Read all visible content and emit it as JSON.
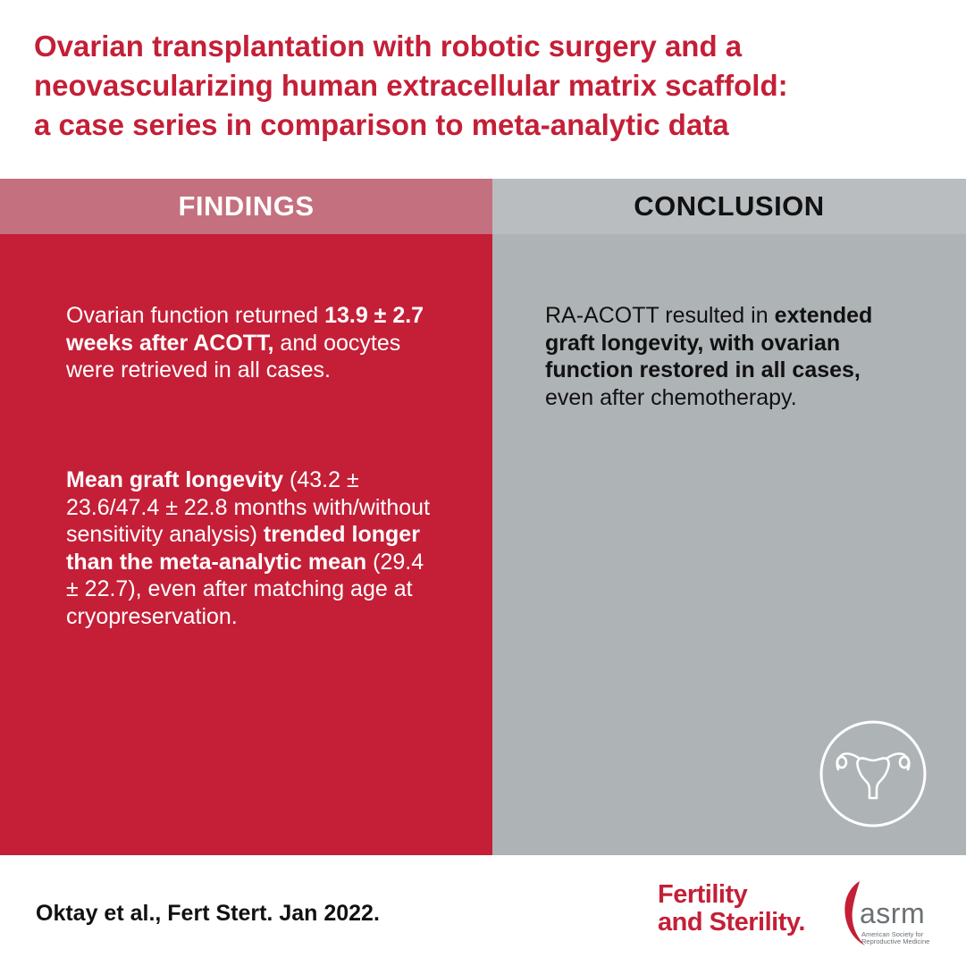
{
  "title": {
    "line1": "Ovarian transplantation with robotic surgery and a",
    "line2": "neovascularizing human extracellular matrix scaffold:",
    "line3": "a case series in comparison to meta-analytic data"
  },
  "findings": {
    "header": "FINDINGS",
    "p1": {
      "t1": "Ovarian function returned ",
      "b1": "13.9 ± 2.7 weeks after ACOTT,",
      "t2": " and oocytes were retrieved in all cases."
    },
    "p2": {
      "b1": "Mean graft longevity",
      "t1": " (43.2 ± 23.6/47.4 ± 22.8 months with/without sensitivity analysis) ",
      "b2": "trended longer than the meta-analytic mean",
      "t2": " (29.4 ± 22.7), even after matching age at cryopreservation."
    }
  },
  "conclusion": {
    "header": "CONCLUSION",
    "p1": {
      "t1": "RA-ACOTT resulted in ",
      "b1": "extended graft longevity, with ovarian function restored in all cases,",
      "t2": " even after chemotherapy."
    }
  },
  "citation": "Oktay et al., Fert Stert. Jan 2022.",
  "logos": {
    "journal_line1": "Fertility",
    "journal_line2": "and Sterility.",
    "asrm_text": "asrm",
    "asrm_sub_line1": "American Society for",
    "asrm_sub_line2": "Reproductive Medicine"
  },
  "icons": {
    "conclusion_icon": "uterus-icon"
  },
  "colors": {
    "brand_red": "#c41f37",
    "findings_header": "#c4707e",
    "conclusion_header": "#b9bdc0",
    "conclusion_body": "#aeb3b6"
  }
}
